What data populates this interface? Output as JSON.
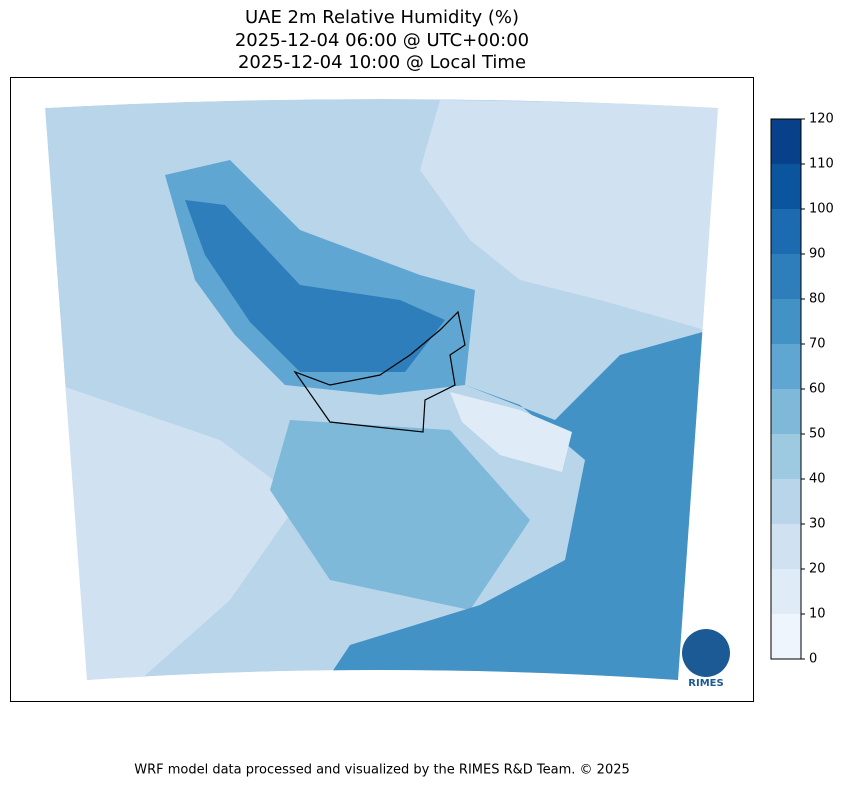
{
  "title": [
    "UAE 2m Relative Humidity (%)",
    "2025-12-04 06:00 @ UTC+00:00",
    "2025-12-04 10:00 @ Local Time"
  ],
  "colorbar": {
    "lim": [
      0,
      120
    ],
    "ticks": [
      0,
      10,
      20,
      30,
      40,
      50,
      60,
      70,
      80,
      90,
      100,
      110,
      120
    ],
    "colors": [
      "#eef5fc",
      "#dfebf7",
      "#d0e1f2",
      "#b8d5ea",
      "#9ecae1",
      "#7fb9da",
      "#60a6d2",
      "#4292c6",
      "#2e7ebc",
      "#1c6aaf",
      "#0b559f",
      "#08408a"
    ]
  },
  "logo": "RIMES",
  "footer": "WRF model data processed and visualized by the RIMES R&D Team. © 2025"
}
